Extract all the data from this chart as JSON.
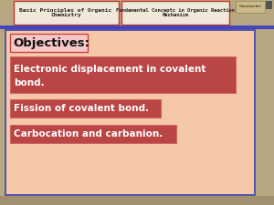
{
  "background_outer": "#b8a882",
  "background_inner": "#f5c9a8",
  "header_bg": "#b8a882",
  "header_text1": "Basic Principles of Organic\nChemistry",
  "header_text2": "Fundamental Concepts in Organic Reaction\nMechanism",
  "header_box1_color": "#f0e8d8",
  "header_box2_color": "#f0e8d8",
  "header_box_border": "#c0392b",
  "objectives_text": "Objectives:",
  "objectives_bg": "#f8c8c8",
  "objectives_border": "#cc4444",
  "item1_line1": "Electronic displacement in covalent",
  "item1_line2": "bond.",
  "item2": "Fission of covalent bond.",
  "item3": "Carbocation and carbanion.",
  "item_bg": "#b94545",
  "item_text_color": "#ffffff",
  "item_border": "#cc6666",
  "main_border_color": "#5555aa",
  "blue_stripe": "#4444bb",
  "classteacher_bg": "#ccbb88",
  "classteacher_text": "Classteacher",
  "figsize": [
    3.0,
    2.25
  ],
  "dpi": 100
}
